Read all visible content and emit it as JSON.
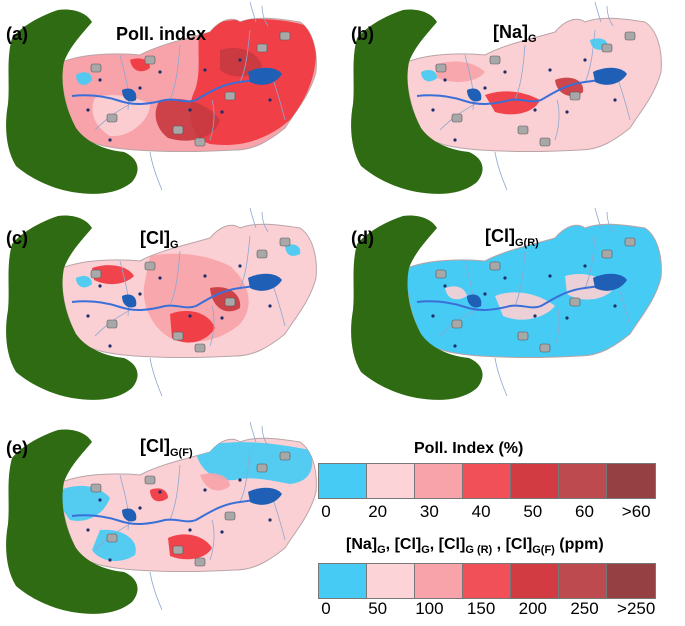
{
  "panels": [
    {
      "label": "(a)",
      "title": "Poll. index",
      "sub": "",
      "scheme": "a"
    },
    {
      "label": "(b)",
      "title": "[Na]",
      "sub": "G",
      "scheme": "b"
    },
    {
      "label": "(c)",
      "title": "[Cl]",
      "sub": "G",
      "scheme": "c"
    },
    {
      "label": "(d)",
      "title": "[Cl]",
      "sub": "G(R)",
      "scheme": "d"
    },
    {
      "label": "(e)",
      "title": "[Cl]",
      "sub": "G(F)",
      "scheme": "e"
    }
  ],
  "legend": {
    "poll_title": "Poll. Index (%)",
    "poll_ticks": [
      "0",
      "20",
      "30",
      "40",
      "50",
      "60",
      ">60"
    ],
    "conc_title": {
      "t1": "[Na]",
      "s1": "G",
      "c1": ", ",
      "t2": "[Cl]",
      "s2": "G",
      "c2": ", ",
      "t3": "[Cl]",
      "s3": "G (R)",
      "c3": " , ",
      "t4": "[Cl]",
      "s4": "G(F)",
      "unit": " (ppm)"
    },
    "conc_ticks": [
      "0",
      "50",
      "100",
      "150",
      "200",
      "250",
      ">250"
    ],
    "colors": [
      "#45cbf4",
      "#fcd3d6",
      "#f7a3a9",
      "#f25058",
      "#d33b42",
      "#bd4a4f",
      "#954043"
    ]
  },
  "map_colors": {
    "mountains": "#2f6b12",
    "background_pink": "#fbd0d4",
    "low_blue": "#45cbf4",
    "mid_pink": "#f7a3a9",
    "high_red": "#f0363f",
    "dark_red": "#c83a40",
    "lake": "#1f5fb5",
    "river": "#3a6fd8",
    "town": "#a8a8a8"
  }
}
